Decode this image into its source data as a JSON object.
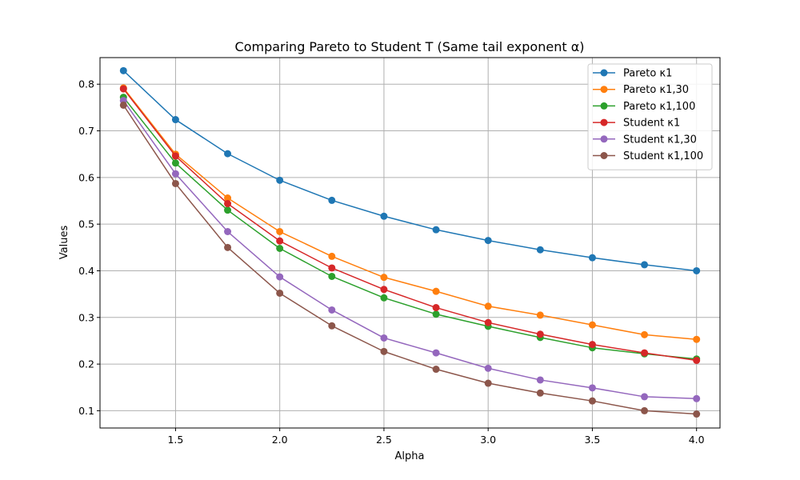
{
  "chart_data": {
    "type": "line",
    "title": "Comparing Pareto to Student T (Same tail exponent α)",
    "xlabel": "Alpha",
    "ylabel": "Values",
    "xlim": [
      1.1375,
      4.1125
    ],
    "ylim": [
      0.063,
      0.857
    ],
    "xticks": [
      "1.5",
      "2.0",
      "2.5",
      "3.0",
      "3.5",
      "4.0"
    ],
    "xtick_values": [
      1.5,
      2.0,
      2.5,
      3.0,
      3.5,
      4.0
    ],
    "yticks": [
      "0.1",
      "0.2",
      "0.3",
      "0.4",
      "0.5",
      "0.6",
      "0.7",
      "0.8"
    ],
    "ytick_values": [
      0.1,
      0.2,
      0.3,
      0.4,
      0.5,
      0.6,
      0.7,
      0.8
    ],
    "grid": true,
    "legend_position": "top-right",
    "x": [
      1.25,
      1.5,
      1.75,
      2.0,
      2.25,
      2.5,
      2.75,
      3.0,
      3.25,
      3.5,
      3.75,
      4.0
    ],
    "series": [
      {
        "name": "Pareto κ1",
        "color": "#1f77b4",
        "values": [
          0.829,
          0.724,
          0.651,
          0.594,
          0.551,
          0.517,
          0.488,
          0.465,
          0.445,
          0.428,
          0.413,
          0.4
        ]
      },
      {
        "name": "Pareto κ1,30",
        "color": "#ff7f0e",
        "values": [
          0.792,
          0.65,
          0.556,
          0.484,
          0.431,
          0.386,
          0.356,
          0.324,
          0.305,
          0.284,
          0.263,
          0.253
        ]
      },
      {
        "name": "Pareto κ1,100",
        "color": "#2ca02c",
        "values": [
          0.772,
          0.631,
          0.53,
          0.448,
          0.388,
          0.342,
          0.307,
          0.281,
          0.257,
          0.235,
          0.222,
          0.211
        ]
      },
      {
        "name": "Student κ1",
        "color": "#d62728",
        "values": [
          0.79,
          0.646,
          0.544,
          0.464,
          0.406,
          0.36,
          0.321,
          0.289,
          0.264,
          0.242,
          0.224,
          0.208
        ]
      },
      {
        "name": "Student κ1,30",
        "color": "#9467bd",
        "values": [
          0.765,
          0.608,
          0.484,
          0.387,
          0.316,
          0.256,
          0.224,
          0.191,
          0.166,
          0.149,
          0.13,
          0.126
        ]
      },
      {
        "name": "Student κ1,100",
        "color": "#8c564b",
        "values": [
          0.755,
          0.587,
          0.45,
          0.352,
          0.282,
          0.227,
          0.189,
          0.159,
          0.138,
          0.121,
          0.1,
          0.093
        ]
      }
    ]
  }
}
